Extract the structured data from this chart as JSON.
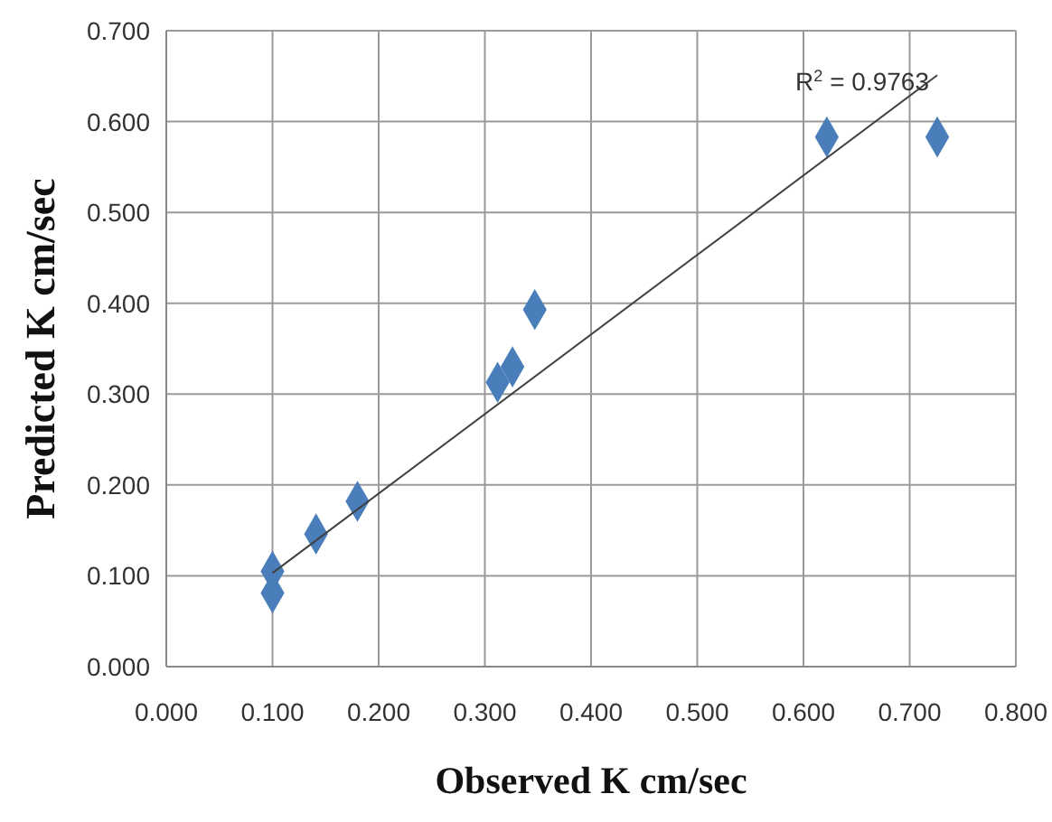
{
  "chart_data": {
    "type": "scatter",
    "xlabel": "Observed K cm/sec",
    "ylabel": "Predicted K cm/sec",
    "xlim": [
      0,
      0.8
    ],
    "ylim": [
      0,
      0.7
    ],
    "xticks": [
      {
        "value": 0,
        "label": "0.000"
      },
      {
        "value": 0.1,
        "label": "0.100"
      },
      {
        "value": 0.2,
        "label": "0.200"
      },
      {
        "value": 0.3,
        "label": "0.300"
      },
      {
        "value": 0.4,
        "label": "0.400"
      },
      {
        "value": 0.5,
        "label": "0.500"
      },
      {
        "value": 0.6,
        "label": "0.600"
      },
      {
        "value": 0.7,
        "label": "0.700"
      },
      {
        "value": 0.8,
        "label": "0.800"
      }
    ],
    "yticks": [
      {
        "value": 0,
        "label": "0.000"
      },
      {
        "value": 0.1,
        "label": "0.100"
      },
      {
        "value": 0.2,
        "label": "0.200"
      },
      {
        "value": 0.3,
        "label": "0.300"
      },
      {
        "value": 0.4,
        "label": "0.400"
      },
      {
        "value": 0.5,
        "label": "0.500"
      },
      {
        "value": 0.6,
        "label": "0.600"
      },
      {
        "value": 0.7,
        "label": "0.700"
      }
    ],
    "grid": true,
    "marker": "diamond",
    "series": [
      {
        "color": "#4a7ebb",
        "x": [
          0.1,
          0.1,
          0.141,
          0.18,
          0.312,
          0.326,
          0.347,
          0.622,
          0.726
        ],
        "values": [
          0.105,
          0.081,
          0.146,
          0.182,
          0.313,
          0.33,
          0.393,
          0.583,
          0.583
        ]
      },
      {
        "type": "line",
        "color": "#404040",
        "x": [
          0.1,
          0.726
        ],
        "values": [
          0.103,
          0.651
        ],
        "marker": "none"
      }
    ],
    "annotations": [
      "R$^{2}$ = 0.9763"
    ]
  }
}
